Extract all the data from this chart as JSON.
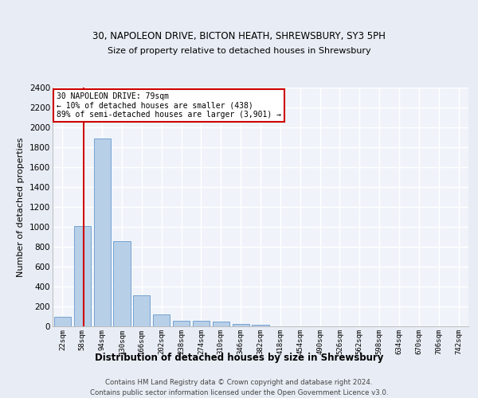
{
  "title1": "30, NAPOLEON DRIVE, BICTON HEATH, SHREWSBURY, SY3 5PH",
  "title2": "Size of property relative to detached houses in Shrewsbury",
  "xlabel": "Distribution of detached houses by size in Shrewsbury",
  "ylabel": "Number of detached properties",
  "categories": [
    "22sqm",
    "58sqm",
    "94sqm",
    "130sqm",
    "166sqm",
    "202sqm",
    "238sqm",
    "274sqm",
    "310sqm",
    "346sqm",
    "382sqm",
    "418sqm",
    "454sqm",
    "490sqm",
    "526sqm",
    "562sqm",
    "598sqm",
    "634sqm",
    "670sqm",
    "706sqm",
    "742sqm"
  ],
  "values": [
    95,
    1010,
    1890,
    860,
    315,
    120,
    60,
    55,
    45,
    25,
    15,
    0,
    0,
    0,
    0,
    0,
    0,
    0,
    0,
    0,
    0
  ],
  "bar_color": "#b8cfe8",
  "bar_edge_color": "#6699cc",
  "annotation_line1": "30 NAPOLEON DRIVE: 79sqm",
  "annotation_line2": "← 10% of detached houses are smaller (438)",
  "annotation_line3": "89% of semi-detached houses are larger (3,901) →",
  "annotation_box_edge": "#cc0000",
  "vline_color": "#cc0000",
  "ylim": [
    0,
    2400
  ],
  "yticks": [
    0,
    200,
    400,
    600,
    800,
    1000,
    1200,
    1400,
    1600,
    1800,
    2000,
    2200,
    2400
  ],
  "footer1": "Contains HM Land Registry data © Crown copyright and database right 2024.",
  "footer2": "Contains public sector information licensed under the Open Government Licence v3.0.",
  "bg_color": "#e8edf5",
  "plot_bg_color": "#f0f4fa"
}
